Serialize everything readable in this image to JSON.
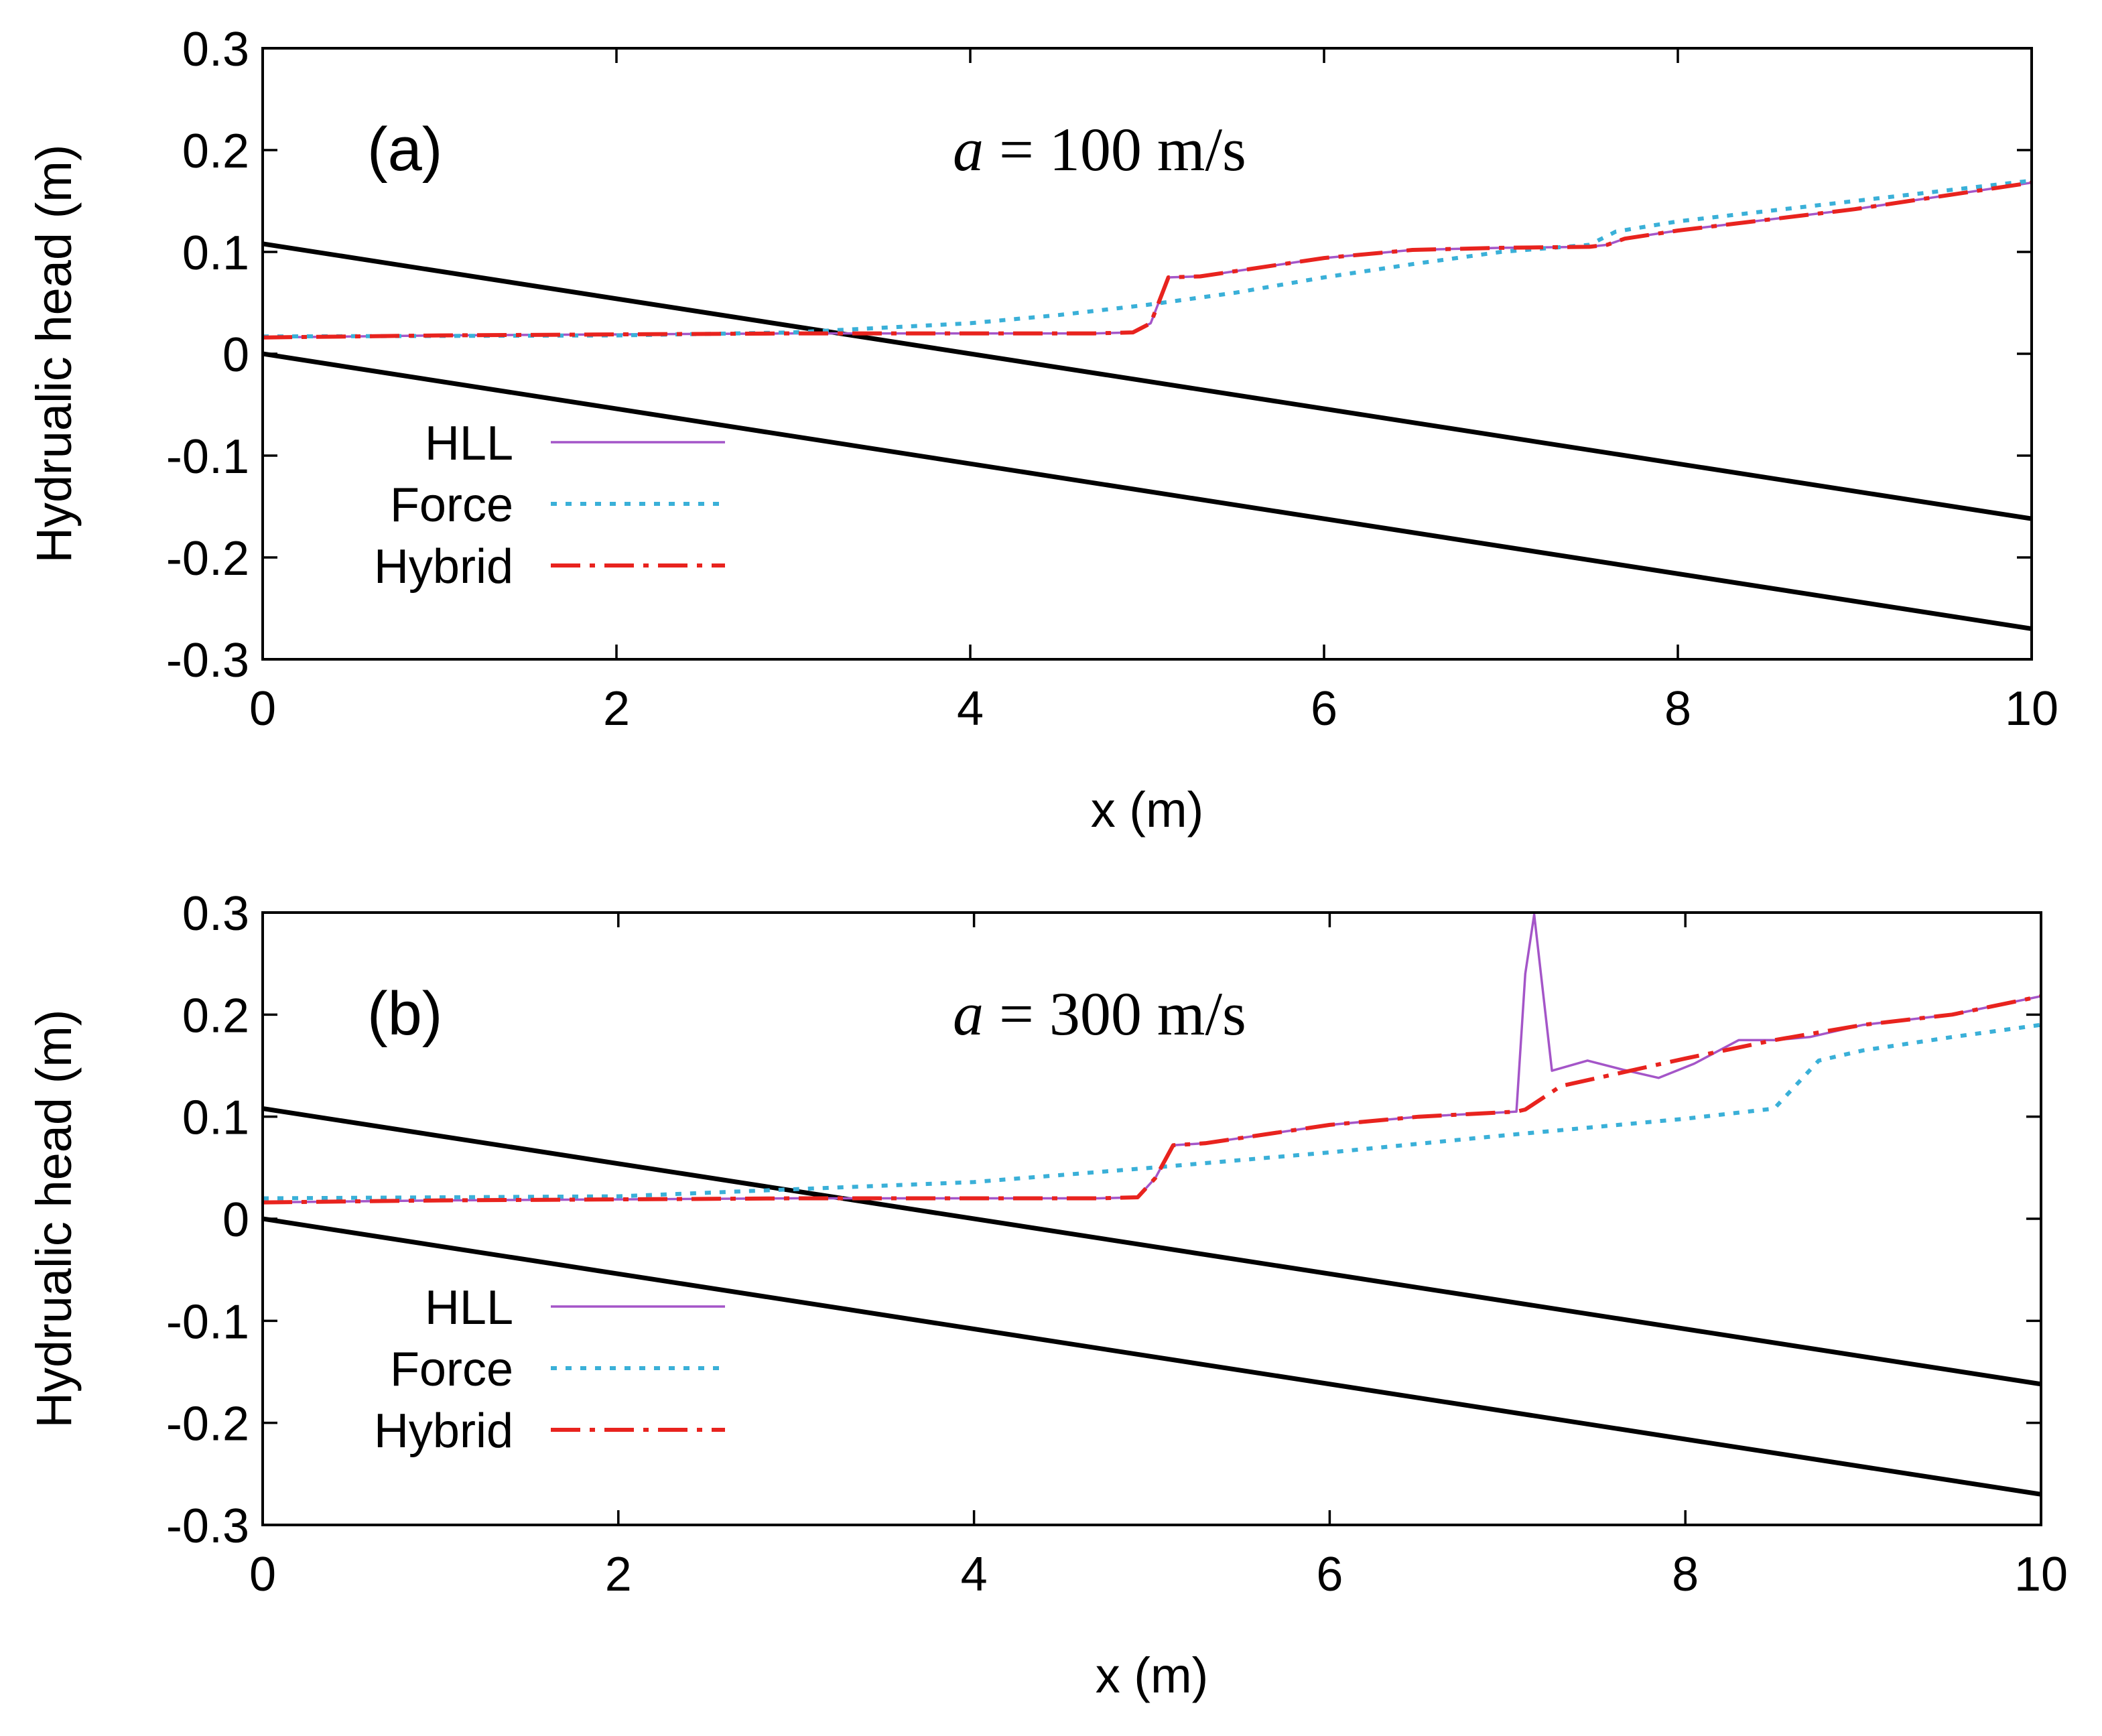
{
  "colors": {
    "hll": "#a455c8",
    "force": "#3ab0d8",
    "hybrid": "#e8231e",
    "channel": "#000000"
  },
  "chart_data": [
    {
      "type": "line",
      "panel_label": "(a)",
      "annotation": {
        "symbol": "a",
        "text": " = 100 m/s"
      },
      "xlabel": "x (m)",
      "ylabel": "Hydrualic head (m)",
      "xlim": [
        0,
        10
      ],
      "ylim": [
        -0.3,
        0.3
      ],
      "xticks": [
        0,
        2,
        4,
        6,
        8,
        10
      ],
      "xtick_labels": [
        "0",
        "2",
        "4",
        "6",
        "8",
        "10"
      ],
      "yticks": [
        -0.3,
        -0.2,
        -0.1,
        0,
        0.1,
        0.2,
        0.3
      ],
      "ytick_labels": [
        "-0.3",
        "-0.2",
        "-0.1",
        "0",
        "0.1",
        "0.2",
        "0.3"
      ],
      "legend": {
        "position": "lower-left",
        "entries": [
          "HLL",
          "Force",
          "Hybrid"
        ]
      },
      "series": [
        {
          "name": "Channel top",
          "style": "solid-thick",
          "color_key": "channel",
          "x": [
            0,
            10
          ],
          "y": [
            0.108,
            -0.162
          ]
        },
        {
          "name": "Channel bed",
          "style": "solid-thick",
          "color_key": "channel",
          "x": [
            0,
            10
          ],
          "y": [
            0.0,
            -0.27
          ]
        },
        {
          "name": "HLL",
          "style": "solid",
          "color_key": "hll",
          "x": [
            0,
            1,
            2,
            3,
            4,
            4.7,
            4.92,
            5.02,
            5.12,
            5.3,
            6,
            6.5,
            7,
            7.5,
            7.6,
            7.7,
            8,
            9,
            10
          ],
          "y": [
            0.016,
            0.018,
            0.019,
            0.02,
            0.02,
            0.02,
            0.021,
            0.03,
            0.075,
            0.076,
            0.094,
            0.102,
            0.104,
            0.105,
            0.107,
            0.113,
            0.121,
            0.142,
            0.168
          ]
        },
        {
          "name": "Force",
          "style": "dotted",
          "color_key": "force",
          "x": [
            0,
            2,
            3,
            4,
            4.5,
            5,
            5.5,
            6,
            6.5,
            7,
            7.5,
            7.65,
            8,
            9,
            10
          ],
          "y": [
            0.017,
            0.018,
            0.021,
            0.03,
            0.038,
            0.048,
            0.06,
            0.075,
            0.088,
            0.1,
            0.107,
            0.12,
            0.13,
            0.15,
            0.17
          ]
        },
        {
          "name": "Hybrid",
          "style": "dashdot",
          "color_key": "hybrid",
          "x": [
            0,
            1,
            2,
            3,
            4,
            4.7,
            4.92,
            5.02,
            5.12,
            5.3,
            6,
            6.5,
            7,
            7.5,
            7.6,
            7.7,
            8,
            9,
            10
          ],
          "y": [
            0.016,
            0.018,
            0.019,
            0.02,
            0.02,
            0.02,
            0.021,
            0.03,
            0.075,
            0.076,
            0.094,
            0.102,
            0.104,
            0.105,
            0.107,
            0.113,
            0.121,
            0.142,
            0.168
          ]
        }
      ]
    },
    {
      "type": "line",
      "panel_label": "(b)",
      "annotation": {
        "symbol": "a",
        "text": " = 300 m/s"
      },
      "xlabel": "x (m)",
      "ylabel": "Hydrualic head (m)",
      "xlim": [
        0,
        10
      ],
      "ylim": [
        -0.3,
        0.3
      ],
      "xticks": [
        0,
        2,
        4,
        6,
        8,
        10
      ],
      "xtick_labels": [
        "0",
        "2",
        "4",
        "6",
        "8",
        "10"
      ],
      "yticks": [
        -0.3,
        -0.2,
        -0.1,
        0,
        0.1,
        0.2,
        0.3
      ],
      "ytick_labels": [
        "-0.3",
        "-0.2",
        "-0.1",
        "0",
        "0.1",
        "0.2",
        "0.3"
      ],
      "legend": {
        "position": "lower-left",
        "entries": [
          "HLL",
          "Force",
          "Hybrid"
        ]
      },
      "series": [
        {
          "name": "Channel top",
          "style": "solid-thick",
          "color_key": "channel",
          "x": [
            0,
            10
          ],
          "y": [
            0.108,
            -0.162
          ]
        },
        {
          "name": "Channel bed",
          "style": "solid-thick",
          "color_key": "channel",
          "x": [
            0,
            10
          ],
          "y": [
            0.0,
            -0.27
          ]
        },
        {
          "name": "HLL",
          "style": "solid",
          "color_key": "hll",
          "x": [
            0,
            1,
            2,
            3,
            4,
            4.7,
            4.92,
            5.02,
            5.12,
            5.3,
            6,
            6.5,
            7.05,
            7.1,
            7.15,
            7.25,
            7.45,
            7.65,
            7.85,
            8.05,
            8.3,
            8.5,
            8.7,
            9,
            9.5,
            10
          ],
          "y": [
            0.016,
            0.018,
            0.019,
            0.02,
            0.02,
            0.02,
            0.021,
            0.04,
            0.072,
            0.074,
            0.092,
            0.1,
            0.105,
            0.24,
            0.298,
            0.145,
            0.155,
            0.146,
            0.138,
            0.152,
            0.175,
            0.175,
            0.178,
            0.19,
            0.2,
            0.218
          ]
        },
        {
          "name": "Force",
          "style": "dotted",
          "color_key": "force",
          "x": [
            0,
            2,
            4,
            5,
            6,
            7,
            8,
            8.5,
            8.75,
            9,
            9.5,
            10
          ],
          "y": [
            0.02,
            0.022,
            0.036,
            0.05,
            0.065,
            0.082,
            0.098,
            0.108,
            0.155,
            0.165,
            0.178,
            0.19
          ]
        },
        {
          "name": "Hybrid",
          "style": "dashdot",
          "color_key": "hybrid",
          "x": [
            0,
            1,
            2,
            3,
            4,
            4.7,
            4.92,
            5.02,
            5.12,
            5.3,
            6,
            6.5,
            7.05,
            7.1,
            7.3,
            8,
            8.5,
            9,
            9.5,
            10
          ],
          "y": [
            0.016,
            0.018,
            0.019,
            0.02,
            0.02,
            0.02,
            0.021,
            0.04,
            0.072,
            0.074,
            0.092,
            0.1,
            0.105,
            0.107,
            0.13,
            0.157,
            0.175,
            0.19,
            0.2,
            0.218
          ]
        }
      ]
    }
  ]
}
